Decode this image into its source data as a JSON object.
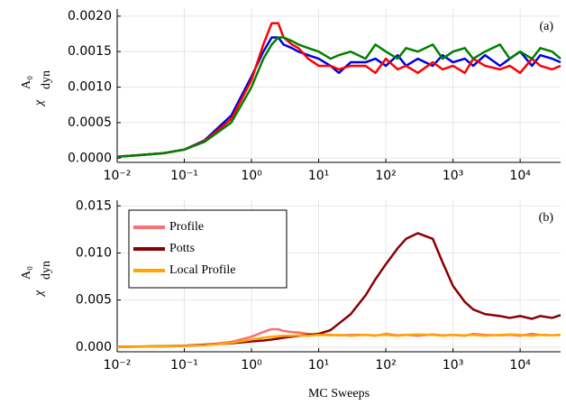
{
  "chart_data": [
    {
      "type": "line",
      "annotation": "(a)",
      "ylabel": {
        "symbol": "χ",
        "sup": "A₀",
        "sub": "dyn"
      },
      "xscale": "log",
      "grid": true,
      "xlim": [
        0.01,
        40000
      ],
      "xticks": [
        {
          "value": 0.01,
          "label": "10⁻²"
        },
        {
          "value": 0.1,
          "label": "10⁻¹"
        },
        {
          "value": 1,
          "label": "10⁰"
        },
        {
          "value": 10,
          "label": "10¹"
        },
        {
          "value": 100,
          "label": "10²"
        },
        {
          "value": 1000,
          "label": "10³"
        },
        {
          "value": 10000,
          "label": "10⁴"
        }
      ],
      "ylim": [
        -6e-05,
        0.0021
      ],
      "yticks": [
        {
          "value": 0,
          "label": "0.0000"
        },
        {
          "value": 0.0005,
          "label": "0.0005"
        },
        {
          "value": 0.001,
          "label": "0.0010"
        },
        {
          "value": 0.0015,
          "label": "0.0015"
        },
        {
          "value": 0.002,
          "label": "0.0020"
        }
      ],
      "x": [
        0.01,
        0.02,
        0.05,
        0.1,
        0.2,
        0.5,
        1,
        1.5,
        2,
        2.5,
        3,
        4,
        5,
        7,
        10,
        15,
        20,
        30,
        50,
        70,
        100,
        150,
        200,
        300,
        500,
        700,
        1000,
        1500,
        2000,
        3000,
        5000,
        7000,
        10000,
        15000,
        20000,
        30000,
        40000
      ],
      "series": [
        {
          "color": "#0000e0",
          "values": [
            2e-05,
            4e-05,
            7e-05,
            0.00012,
            0.00025,
            0.0006,
            0.00115,
            0.0015,
            0.0017,
            0.0017,
            0.0016,
            0.00155,
            0.0015,
            0.00145,
            0.0014,
            0.0013,
            0.0012,
            0.00135,
            0.00135,
            0.0014,
            0.0013,
            0.00145,
            0.0013,
            0.0014,
            0.0013,
            0.00145,
            0.00135,
            0.0014,
            0.0013,
            0.00145,
            0.0013,
            0.0014,
            0.0015,
            0.0013,
            0.00145,
            0.0014,
            0.00135
          ]
        },
        {
          "color": "#ff0000",
          "values": [
            2e-05,
            4e-05,
            7e-05,
            0.00012,
            0.00024,
            0.00055,
            0.0011,
            0.0016,
            0.0019,
            0.0019,
            0.0017,
            0.0016,
            0.00155,
            0.0014,
            0.0013,
            0.0013,
            0.00125,
            0.0013,
            0.0013,
            0.0012,
            0.0014,
            0.00125,
            0.0013,
            0.0012,
            0.00135,
            0.00125,
            0.0013,
            0.0012,
            0.0014,
            0.0013,
            0.00125,
            0.0013,
            0.0012,
            0.0014,
            0.0013,
            0.00125,
            0.0013
          ]
        },
        {
          "color": "#008000",
          "values": [
            2e-05,
            4e-05,
            7e-05,
            0.00012,
            0.00023,
            0.0005,
            0.001,
            0.0014,
            0.0016,
            0.0017,
            0.0017,
            0.00165,
            0.0016,
            0.00155,
            0.0015,
            0.0014,
            0.00145,
            0.0015,
            0.0014,
            0.0016,
            0.0015,
            0.0014,
            0.00155,
            0.0015,
            0.0016,
            0.0014,
            0.0015,
            0.00155,
            0.0014,
            0.0015,
            0.0016,
            0.0014,
            0.0015,
            0.0014,
            0.00155,
            0.0015,
            0.0014
          ]
        }
      ]
    },
    {
      "type": "line",
      "annotation": "(b)",
      "xlabel": "MC Sweeps",
      "ylabel": {
        "symbol": "χ",
        "sup": "A₀",
        "sub": "dyn"
      },
      "xscale": "log",
      "grid": true,
      "legend": "upper left",
      "xlim": [
        0.01,
        40000
      ],
      "xticks": [
        {
          "value": 0.01,
          "label": "10⁻²"
        },
        {
          "value": 0.1,
          "label": "10⁻¹"
        },
        {
          "value": 1,
          "label": "10⁰"
        },
        {
          "value": 10,
          "label": "10¹"
        },
        {
          "value": 100,
          "label": "10²"
        },
        {
          "value": 1000,
          "label": "10³"
        },
        {
          "value": 10000,
          "label": "10⁴"
        }
      ],
      "ylim": [
        -0.0005,
        0.0156
      ],
      "yticks": [
        {
          "value": 0,
          "label": "0.000"
        },
        {
          "value": 0.005,
          "label": "0.005"
        },
        {
          "value": 0.01,
          "label": "0.010"
        },
        {
          "value": 0.015,
          "label": "0.015"
        }
      ],
      "x": [
        0.01,
        0.02,
        0.05,
        0.1,
        0.2,
        0.5,
        1,
        1.5,
        2,
        2.5,
        3,
        4,
        5,
        7,
        10,
        15,
        20,
        30,
        50,
        70,
        100,
        150,
        200,
        300,
        500,
        700,
        1000,
        1500,
        2000,
        3000,
        5000,
        7000,
        10000,
        15000,
        20000,
        30000,
        40000
      ],
      "series": [
        {
          "name": "Profile",
          "color": "#f87070",
          "values": [
            2e-05,
            4e-05,
            7e-05,
            0.00012,
            0.00024,
            0.00055,
            0.0011,
            0.0016,
            0.0019,
            0.0019,
            0.0017,
            0.0016,
            0.00155,
            0.0014,
            0.0013,
            0.0013,
            0.00125,
            0.0013,
            0.0013,
            0.0012,
            0.0014,
            0.00125,
            0.0013,
            0.0012,
            0.00135,
            0.00125,
            0.0013,
            0.0012,
            0.0014,
            0.0013,
            0.00125,
            0.0013,
            0.0012,
            0.0014,
            0.0013,
            0.00125,
            0.0013
          ]
        },
        {
          "name": "Potts",
          "color": "#8b0000",
          "values": [
            3e-05,
            5e-05,
            0.0001,
            0.00015,
            0.00025,
            0.0004,
            0.0006,
            0.0007,
            0.0008,
            0.0009,
            0.001,
            0.0011,
            0.0012,
            0.0013,
            0.0014,
            0.0018,
            0.0025,
            0.0035,
            0.0055,
            0.0072,
            0.0088,
            0.0105,
            0.0115,
            0.0121,
            0.0115,
            0.009,
            0.0065,
            0.0048,
            0.004,
            0.0035,
            0.0033,
            0.0031,
            0.0033,
            0.003,
            0.0033,
            0.0031,
            0.0034
          ]
        },
        {
          "name": "Local Profile",
          "color": "#ffa500",
          "values": [
            2e-05,
            4e-05,
            7e-05,
            0.00012,
            0.0002,
            0.00045,
            0.0008,
            0.001,
            0.0011,
            0.00115,
            0.0012,
            0.0012,
            0.00125,
            0.0012,
            0.0013,
            0.00125,
            0.0013,
            0.0012,
            0.0013,
            0.00125,
            0.0013,
            0.0012,
            0.0013,
            0.00135,
            0.0013,
            0.0012,
            0.0013,
            0.00125,
            0.0013,
            0.0012,
            0.0013,
            0.00135,
            0.0013,
            0.0012,
            0.0013,
            0.00125,
            0.0013
          ]
        }
      ]
    }
  ]
}
